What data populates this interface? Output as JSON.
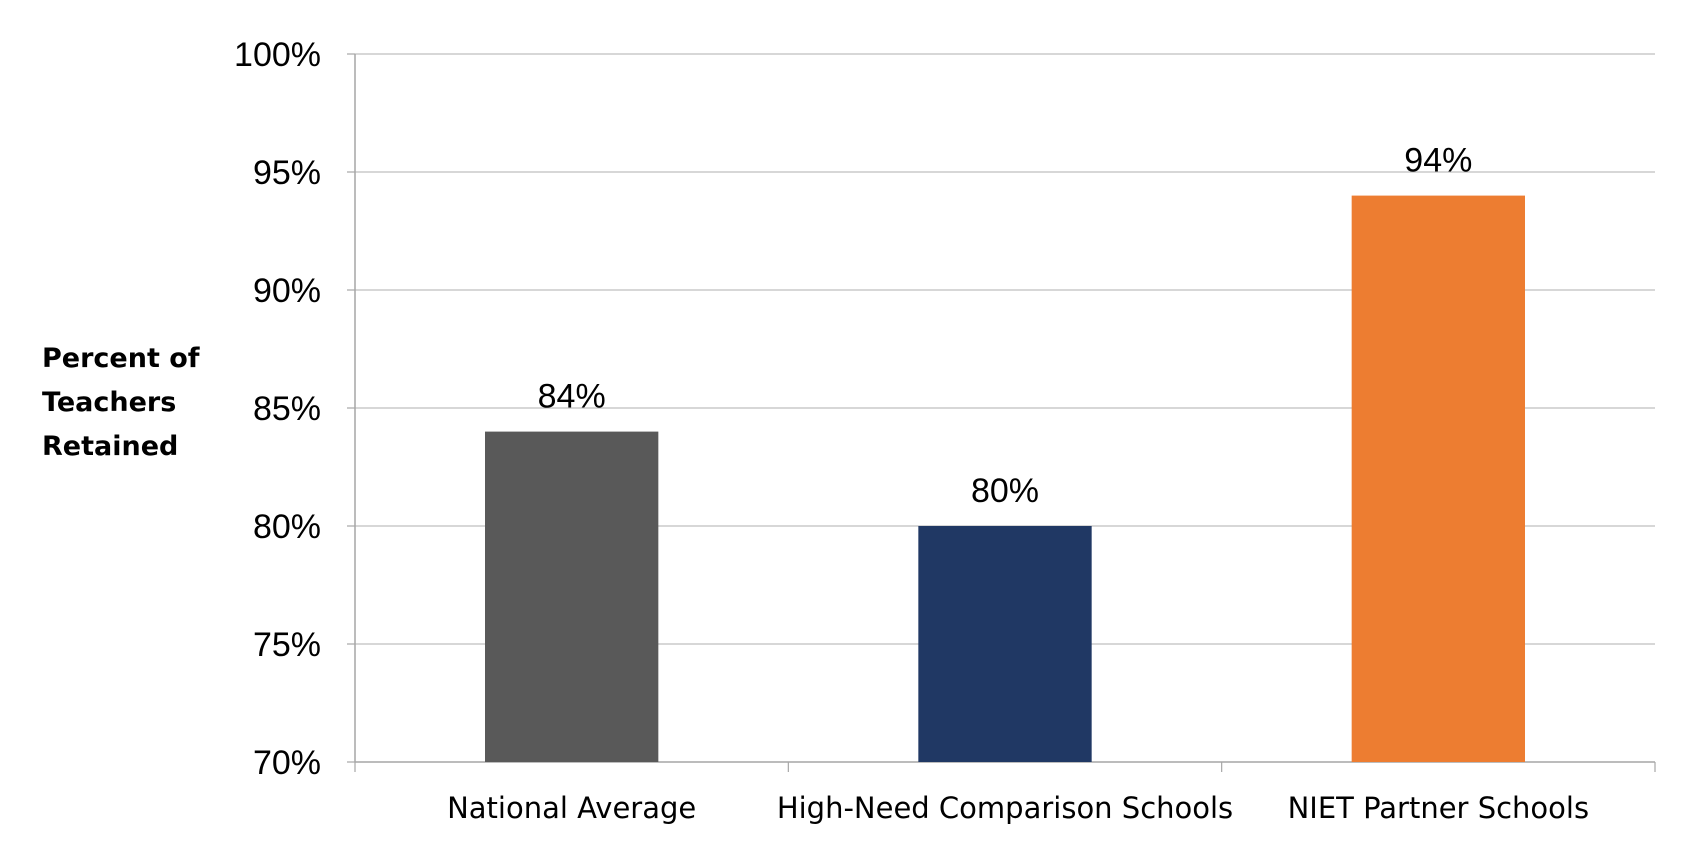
{
  "chart_data": {
    "type": "bar",
    "title": "",
    "xlabel": "",
    "ylabel": "Percent of\nTeachers\nRetained",
    "categories": [
      "National Average",
      "High-Need Comparison Schools",
      "NIET Partner Schools"
    ],
    "values": [
      84,
      80,
      94
    ],
    "value_labels": [
      "84%",
      "80%",
      "94%"
    ],
    "colors": [
      "#595959",
      "#203864",
      "#ED7D31"
    ],
    "ylim": [
      70,
      100
    ],
    "yticks": [
      70,
      75,
      80,
      85,
      90,
      95,
      100
    ],
    "ytick_labels": [
      "70%",
      "75%",
      "80%",
      "85%",
      "90%",
      "95%",
      "100%"
    ],
    "grid": true,
    "legend": "none"
  }
}
